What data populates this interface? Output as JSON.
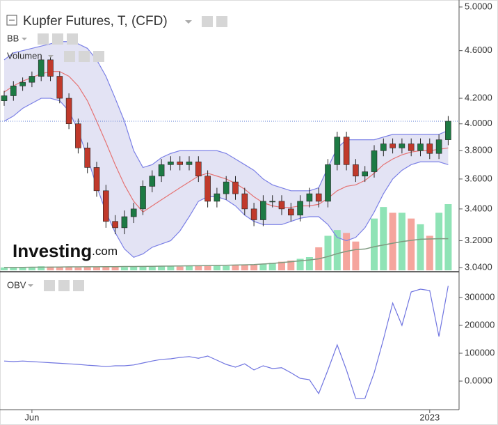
{
  "chart_data": {
    "type": "candlestick",
    "title": "Kupfer Futures, T, (CFD)",
    "log_scale": true,
    "ylim": [
      3.04,
      5
    ],
    "yticks": [
      {
        "value": 5,
        "label": "5.0000"
      },
      {
        "value": 4.6,
        "label": "4.6000"
      },
      {
        "value": 4.2,
        "label": "4.2000"
      },
      {
        "value": 4,
        "label": "4.0000"
      },
      {
        "value": 3.8,
        "label": "3.8000"
      },
      {
        "value": 3.6,
        "label": "3.6000"
      },
      {
        "value": 3.4,
        "label": "3.4000"
      },
      {
        "value": 3.2,
        "label": "3.2000"
      },
      {
        "value": 3.04,
        "label": "3.0400"
      }
    ],
    "categories": [
      null,
      null,
      null,
      "Jun",
      null,
      null,
      null,
      null,
      null,
      null,
      null,
      null,
      null,
      null,
      null,
      null,
      null,
      null,
      null,
      null,
      null,
      null,
      null,
      null,
      null,
      null,
      null,
      null,
      null,
      null,
      null,
      null,
      null,
      null,
      null,
      null,
      null,
      null,
      null,
      null,
      null,
      null,
      null,
      null,
      null,
      null,
      "2023",
      null,
      null
    ],
    "up_color": "#1d7a44",
    "down_color": "#c0392b",
    "open": [
      4.18,
      4.22,
      4.3,
      4.33,
      4.38,
      4.52,
      4.38,
      4.2,
      4.0,
      3.82,
      3.68,
      3.52,
      3.32,
      3.28,
      3.35,
      3.4,
      3.55,
      3.62,
      3.7,
      3.72,
      3.7,
      3.72,
      3.62,
      3.45,
      3.5,
      3.58,
      3.5,
      3.4,
      3.33,
      3.45,
      3.45,
      3.4,
      3.36,
      3.45,
      3.5,
      3.45,
      3.7,
      3.9,
      3.7,
      3.62,
      3.65,
      3.8,
      3.85,
      3.82,
      3.85,
      3.8,
      3.85,
      3.78,
      3.88
    ],
    "high": [
      4.26,
      4.34,
      4.37,
      4.42,
      4.56,
      4.56,
      4.42,
      4.24,
      4.04,
      3.86,
      3.72,
      3.56,
      3.36,
      3.39,
      3.44,
      3.59,
      3.66,
      3.74,
      3.76,
      3.76,
      3.76,
      3.76,
      3.66,
      3.54,
      3.62,
      3.62,
      3.54,
      3.44,
      3.49,
      3.49,
      3.49,
      3.44,
      3.49,
      3.54,
      3.54,
      3.74,
      3.94,
      3.94,
      3.74,
      3.69,
      3.84,
      3.89,
      3.89,
      3.89,
      3.89,
      3.89,
      3.89,
      3.92,
      4.06
    ],
    "low": [
      4.14,
      4.18,
      4.26,
      4.29,
      4.34,
      4.34,
      4.16,
      3.96,
      3.78,
      3.64,
      3.48,
      3.28,
      3.24,
      3.24,
      3.31,
      3.36,
      3.51,
      3.58,
      3.66,
      3.66,
      3.66,
      3.58,
      3.41,
      3.41,
      3.46,
      3.46,
      3.36,
      3.29,
      3.29,
      3.41,
      3.36,
      3.32,
      3.32,
      3.41,
      3.41,
      3.41,
      3.66,
      3.66,
      3.58,
      3.58,
      3.61,
      3.76,
      3.78,
      3.78,
      3.76,
      3.76,
      3.74,
      3.74,
      3.84
    ],
    "close": [
      4.22,
      4.3,
      4.33,
      4.38,
      4.52,
      4.38,
      4.2,
      4.0,
      3.82,
      3.68,
      3.52,
      3.32,
      3.28,
      3.35,
      3.4,
      3.55,
      3.62,
      3.7,
      3.72,
      3.7,
      3.72,
      3.62,
      3.45,
      3.5,
      3.58,
      3.5,
      3.4,
      3.33,
      3.45,
      3.45,
      3.4,
      3.36,
      3.45,
      3.5,
      3.45,
      3.7,
      3.9,
      3.7,
      3.62,
      3.65,
      3.8,
      3.85,
      3.82,
      3.85,
      3.8,
      3.85,
      3.78,
      3.88,
      4.02
    ],
    "bb": {
      "label": "BB",
      "band_color": "#7b80e6",
      "fill_color": "#e3e3f4",
      "middle_color": "#e57373",
      "upper": [
        4.52,
        4.58,
        4.6,
        4.62,
        4.64,
        4.66,
        4.68,
        4.68,
        4.66,
        4.62,
        4.52,
        4.38,
        4.2,
        4.02,
        3.8,
        3.68,
        3.7,
        3.75,
        3.78,
        3.8,
        3.8,
        3.8,
        3.8,
        3.8,
        3.78,
        3.74,
        3.7,
        3.66,
        3.6,
        3.56,
        3.54,
        3.52,
        3.52,
        3.52,
        3.54,
        3.68,
        3.82,
        3.88,
        3.88,
        3.88,
        3.88,
        3.9,
        3.92,
        3.92,
        3.92,
        3.92,
        3.92,
        3.92,
        3.95
      ],
      "middle": [
        4.25,
        4.3,
        4.34,
        4.37,
        4.4,
        4.42,
        4.42,
        4.38,
        4.3,
        4.18,
        4.02,
        3.86,
        3.7,
        3.56,
        3.45,
        3.38,
        3.42,
        3.46,
        3.5,
        3.54,
        3.58,
        3.62,
        3.64,
        3.62,
        3.6,
        3.57,
        3.53,
        3.48,
        3.44,
        3.42,
        3.41,
        3.41,
        3.42,
        3.42,
        3.43,
        3.47,
        3.52,
        3.55,
        3.56,
        3.59,
        3.64,
        3.7,
        3.74,
        3.77,
        3.79,
        3.8,
        3.8,
        3.81,
        3.82
      ],
      "lower": [
        4.02,
        4.06,
        4.12,
        4.16,
        4.2,
        4.2,
        4.18,
        4.1,
        3.95,
        3.75,
        3.55,
        3.38,
        3.25,
        3.15,
        3.1,
        3.12,
        3.16,
        3.18,
        3.2,
        3.26,
        3.35,
        3.45,
        3.48,
        3.48,
        3.46,
        3.42,
        3.36,
        3.32,
        3.3,
        3.3,
        3.3,
        3.32,
        3.34,
        3.35,
        3.35,
        3.3,
        3.22,
        3.2,
        3.22,
        3.28,
        3.38,
        3.5,
        3.6,
        3.66,
        3.7,
        3.72,
        3.72,
        3.72,
        3.7
      ]
    },
    "volume": {
      "label": "Volumen",
      "up_color": "#8fe3b6",
      "down_color": "#f5a59d",
      "ma_color": "#7f9a80",
      "values": [
        50,
        45,
        55,
        60,
        70,
        65,
        55,
        60,
        50,
        55,
        60,
        70,
        65,
        55,
        60,
        70,
        75,
        80,
        70,
        65,
        75,
        85,
        90,
        80,
        75,
        85,
        95,
        100,
        110,
        130,
        150,
        170,
        200,
        230,
        400,
        600,
        700,
        650,
        500,
        0,
        900,
        1100,
        1000,
        1000,
        900,
        800,
        600,
        1000,
        1150
      ],
      "ma": [
        50,
        50,
        52,
        54,
        55,
        56,
        58,
        60,
        60,
        62,
        62,
        64,
        64,
        66,
        66,
        68,
        70,
        72,
        74,
        76,
        78,
        80,
        82,
        85,
        88,
        92,
        96,
        100,
        110,
        120,
        135,
        150,
        165,
        180,
        200,
        240,
        290,
        330,
        360,
        370,
        410,
        440,
        470,
        500,
        520,
        540,
        545,
        550,
        550
      ]
    },
    "obv": {
      "label": "OBV",
      "color": "#6f74e0",
      "ylim": [
        -95000,
        380000
      ],
      "yticks": [
        300000,
        200000,
        100000,
        {
          "value": 0,
          "label": "0.0000"
        }
      ],
      "values": [
        72000,
        70000,
        72000,
        70000,
        68000,
        66000,
        64000,
        62000,
        60000,
        57000,
        55000,
        52000,
        55000,
        55000,
        58000,
        65000,
        72000,
        78000,
        80000,
        85000,
        88000,
        82000,
        90000,
        75000,
        60000,
        50000,
        62000,
        40000,
        55000,
        45000,
        48000,
        30000,
        10000,
        5000,
        -45000,
        40000,
        130000,
        40000,
        -62000,
        -62000,
        30000,
        150000,
        280000,
        200000,
        320000,
        330000,
        325000,
        160000,
        342000
      ]
    },
    "watermark": {
      "brand": "Investing",
      "suffix": ".com"
    }
  }
}
